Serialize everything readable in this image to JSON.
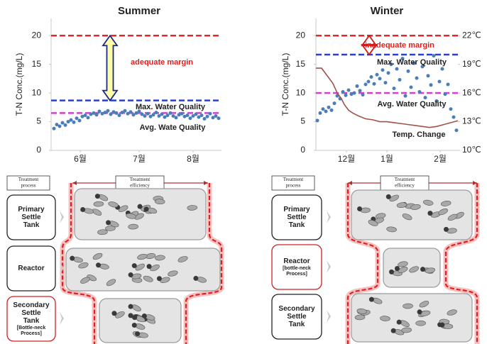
{
  "chart_data": [
    {
      "type": "scatter",
      "title": "Summer",
      "y_label": "T-N Conc.(mg/L)",
      "xlim": [
        0,
        60
      ],
      "xticks": [
        {
          "value": 10.25,
          "label": "6월"
        },
        {
          "value": 31,
          "label": "7월"
        },
        {
          "value": 50,
          "label": "8월"
        }
      ],
      "ylim": [
        0,
        23
      ],
      "yticks": [
        0,
        5,
        10,
        15,
        20
      ],
      "hlines": [
        {
          "value": 20,
          "color": "#e8262a"
        },
        {
          "value": 8.7,
          "color": "#2a3fcf",
          "label": "Max. Water Quality"
        },
        {
          "value": 6.5,
          "color": "#d33fd3",
          "label": "Avg. Wate Quality"
        }
      ],
      "margin_annotation": "adequate margin",
      "series": [
        {
          "color": "#4a7ebb",
          "x": [
            1,
            2,
            3,
            4,
            5,
            6,
            7,
            8,
            9,
            10,
            11,
            12,
            13,
            14,
            15,
            16,
            17,
            18,
            19,
            20,
            21,
            22,
            23,
            24,
            25,
            26,
            27,
            28,
            29,
            30,
            31,
            32,
            33,
            34,
            35,
            36,
            37,
            38,
            39,
            40,
            41,
            42,
            43,
            44,
            45,
            46,
            47,
            48,
            49,
            50,
            51,
            52,
            53,
            54,
            55,
            56,
            57,
            58,
            59
          ],
          "values": [
            3.8,
            4.5,
            4.2,
            4.8,
            4.4,
            5.0,
            5.3,
            4.9,
            5.6,
            5.2,
            5.9,
            6.1,
            5.7,
            6.3,
            6.5,
            6.2,
            6.8,
            6.4,
            6.6,
            6.9,
            6.3,
            6.7,
            6.5,
            6.1,
            6.6,
            6.9,
            6.4,
            6.7,
            6.2,
            6.5,
            6.8,
            6.3,
            6.0,
            6.4,
            5.9,
            6.2,
            6.6,
            6.0,
            6.3,
            5.8,
            6.1,
            6.5,
            6.0,
            5.7,
            6.2,
            6.4,
            5.9,
            6.1,
            5.6,
            6.0,
            6.3,
            5.8,
            6.1,
            5.5,
            5.9,
            6.4,
            5.7,
            6.0,
            5.6
          ]
        }
      ]
    },
    {
      "type": "scatter",
      "title": "Winter",
      "y_label": "T-N Conc.(mg/L)",
      "xlim": [
        0,
        100
      ],
      "xticks": [
        {
          "value": 21.5,
          "label": "12월"
        },
        {
          "value": 50,
          "label": "1월"
        },
        {
          "value": 87.5,
          "label": "2월"
        }
      ],
      "ylim": [
        0,
        23
      ],
      "yticks": [
        0,
        5,
        10,
        15,
        20
      ],
      "y2lim": [
        10,
        23.8
      ],
      "y2ticks": [
        {
          "value": 10,
          "label": "10℃"
        },
        {
          "value": 13,
          "label": "13℃"
        },
        {
          "value": 16,
          "label": "16℃"
        },
        {
          "value": 19,
          "label": "19℃"
        },
        {
          "value": 22,
          "label": "22℃"
        }
      ],
      "hlines": [
        {
          "value": 20,
          "color": "#e8262a"
        },
        {
          "value": 16.7,
          "color": "#2a3fcf",
          "label": "Max. Water Quality"
        },
        {
          "value": 10,
          "color": "#d33fd3",
          "label": "Avg. Water Quality"
        }
      ],
      "margin_annotation": "inadequate margin",
      "series": [
        {
          "color": "#4a7ebb",
          "x": [
            1,
            3,
            5,
            7,
            9,
            11,
            13,
            15,
            17,
            19,
            21,
            23,
            25,
            27,
            29,
            31,
            33,
            35,
            37,
            39,
            41,
            43,
            45,
            47,
            49,
            51,
            53,
            55,
            57,
            59,
            61,
            63,
            65,
            67,
            69,
            71,
            73,
            75,
            77,
            79,
            81,
            83,
            85,
            87,
            89,
            91,
            93,
            95,
            97,
            99
          ],
          "values": [
            5.2,
            6.5,
            7.2,
            6.8,
            7.5,
            7.0,
            8.2,
            9.5,
            9.0,
            10.2,
            9.6,
            10.5,
            9.8,
            10.0,
            11.2,
            10.4,
            9.7,
            11.5,
            12.0,
            12.8,
            11.6,
            13.2,
            12.5,
            14.0,
            11.8,
            13.5,
            15.0,
            10.8,
            14.2,
            12.3,
            16.0,
            9.5,
            13.8,
            11.0,
            15.2,
            12.6,
            10.2,
            14.6,
            9.2,
            13.0,
            11.4,
            16.5,
            8.6,
            12.0,
            14.2,
            9.8,
            11.5,
            7.2,
            5.8,
            3.5
          ]
        },
        {
          "type": "line",
          "name": "Temp. Change",
          "axis": "y2",
          "color": "#a0524a",
          "x": [
            0,
            4,
            8,
            12,
            15,
            18,
            20,
            23,
            26,
            30,
            35,
            40,
            45,
            50,
            55,
            60,
            65,
            70,
            75,
            80,
            85,
            90,
            95,
            100
          ],
          "values": [
            18.6,
            18.6,
            17.8,
            17.0,
            16.0,
            15.4,
            14.8,
            14.2,
            13.9,
            13.6,
            13.3,
            13.2,
            13.0,
            13.0,
            12.9,
            12.8,
            12.7,
            12.6,
            12.5,
            12.4,
            12.5,
            12.7,
            12.9,
            13.1
          ]
        }
      ]
    }
  ],
  "diagrams": [
    {
      "process_header": [
        "Treatment",
        "process"
      ],
      "efficiency_header": [
        "Treatment",
        "efficiency"
      ],
      "steps": [
        {
          "lines": [
            "Primary",
            "Settle",
            "Tank"
          ],
          "bottleneck": false
        },
        {
          "lines": [
            "Reactor"
          ],
          "bottleneck": false
        },
        {
          "lines": [
            "Secondary",
            "Settle",
            "Tank"
          ],
          "note": [
            "[Bottle-neck",
            "Process]"
          ],
          "bottleneck": true
        }
      ]
    },
    {
      "process_header": [
        "Treatment",
        "process"
      ],
      "efficiency_header": [
        "Treatment",
        "efficiency"
      ],
      "steps": [
        {
          "lines": [
            "Primary",
            "Settle",
            "Tank"
          ],
          "bottleneck": false
        },
        {
          "lines": [
            "Reactor"
          ],
          "note": [
            "[bottle-neck",
            "Process]"
          ],
          "bottleneck": true
        },
        {
          "lines": [
            "Secondary",
            "Settle",
            "Tank"
          ],
          "bottleneck": false
        }
      ]
    }
  ]
}
